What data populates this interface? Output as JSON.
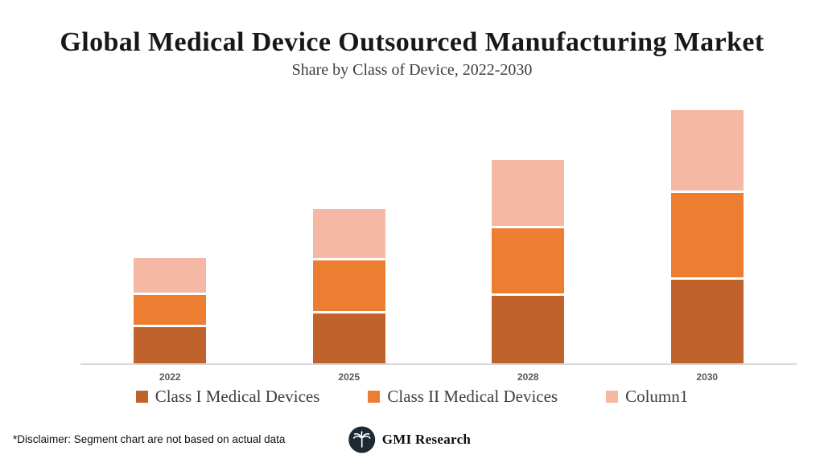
{
  "title": "Global Medical Device Outsourced Manufacturing Market",
  "subtitle": "Share by Class of Device, 2022-2030",
  "chart_data": {
    "type": "bar",
    "stacked": true,
    "title": "Global Medical Device Outsourced Manufacturing Market",
    "subtitle": "Share by Class of Device, 2022-2030",
    "categories": [
      "2022",
      "2025",
      "2028",
      "2030"
    ],
    "series": [
      {
        "name": "Class I Medical Devices",
        "color": "#C0622B",
        "values": [
          45,
          62,
          84,
          104
        ]
      },
      {
        "name": "Class II Medical Devices",
        "color": "#ED7D31",
        "values": [
          37,
          63,
          81,
          105
        ]
      },
      {
        "name": "Column1",
        "color": "#F4B8A4",
        "values": [
          43,
          61,
          82,
          100
        ]
      }
    ],
    "ylim": [
      0,
      315
    ],
    "grid": false,
    "legend_position": "bottom",
    "axis_color": "#d9d9d9",
    "xlabel": "",
    "ylabel": ""
  },
  "footer": {
    "disclaimer": "*Disclaimer:  Segment chart are not based on actual data",
    "logo_text": "GMI Research"
  },
  "colors": {
    "logo_circle": "#1d2a33",
    "x_label": "#595959"
  }
}
